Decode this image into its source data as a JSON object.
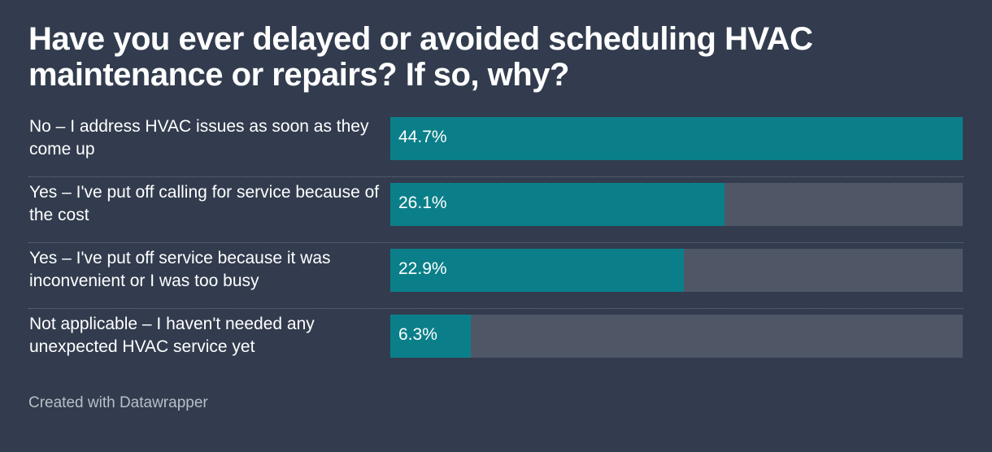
{
  "title": "Have you ever delayed or avoided scheduling HVAC maintenance or repairs? If so, why?",
  "footer": "Created with Datawrapper",
  "colors": {
    "background": "#323c4e",
    "bar": "#0b7f89",
    "track": "#4f5767",
    "text": "#ffffff",
    "footer_text": "#b9bec8"
  },
  "chart_data": {
    "type": "bar",
    "orientation": "horizontal",
    "title": "Have you ever delayed or avoided scheduling HVAC maintenance or repairs? If so, why?",
    "categories": [
      "No – I address HVAC issues as soon as they come up",
      "Yes – I've put off calling for service because of the cost",
      "Yes – I've put off service because it was inconvenient or I was too busy",
      "Not applicable – I haven't needed any unexpected HVAC service yet"
    ],
    "values": [
      44.7,
      26.1,
      22.9,
      6.3
    ],
    "value_labels": [
      "44.7%",
      "26.1%",
      "22.9%",
      "6.3%"
    ],
    "xlim": [
      0,
      44.7
    ],
    "grid": false,
    "legend": "none"
  }
}
